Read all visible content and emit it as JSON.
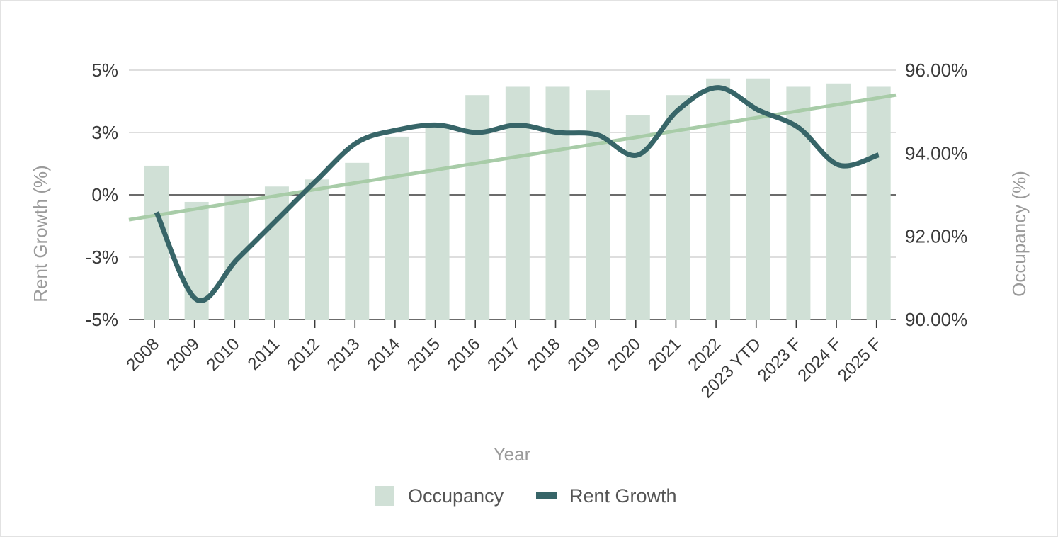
{
  "chart_data": {
    "type": "bar+line",
    "categories": [
      "2008",
      "2009",
      "2010",
      "2011",
      "2012",
      "2013",
      "2014",
      "2015",
      "2016",
      "2017",
      "2018",
      "2019",
      "2020",
      "2021",
      "2022",
      "2023 YTD",
      "2023 F",
      "2024 F",
      "2025 F"
    ],
    "series": [
      {
        "name": "Occupancy",
        "type": "bar",
        "axis": "right",
        "color": "#d0e0d6",
        "values": [
          93.7,
          92.83,
          92.97,
          93.2,
          93.37,
          93.77,
          94.4,
          94.7,
          95.4,
          95.6,
          95.6,
          95.52,
          94.92,
          95.4,
          95.8,
          95.8,
          95.6,
          95.68,
          95.6
        ]
      },
      {
        "name": "Rent Growth",
        "type": "line",
        "axis": "left",
        "color": "#376568",
        "values": [
          -0.7,
          -4.2,
          -2.6,
          -1.0,
          0.6,
          2.1,
          2.6,
          2.8,
          2.5,
          2.8,
          2.5,
          2.4,
          1.6,
          3.4,
          4.3,
          3.4,
          2.7,
          1.2,
          1.6
        ]
      },
      {
        "name": "Trend",
        "type": "trendline",
        "axis": "left",
        "color": "#a8cca8",
        "start": -1.0,
        "end": 4.0
      }
    ],
    "left_axis": {
      "title": "Rent Growth (%)",
      "ticks": [
        "5%",
        "3%",
        "0%",
        "-3%",
        "-5%"
      ],
      "tick_values": [
        5,
        2.5,
        0,
        -2.5,
        -5
      ],
      "range": [
        -5,
        5
      ]
    },
    "right_axis": {
      "title": "Occupancy (%)",
      "ticks": [
        "96.00%",
        "94.00%",
        "92.00%",
        "90.00%"
      ],
      "tick_values": [
        96,
        94,
        92,
        90
      ],
      "range": [
        90,
        96
      ]
    },
    "xlabel": "Year",
    "legend": {
      "position": "bottom",
      "items": [
        {
          "label": "Occupancy",
          "swatch": "box",
          "color": "#d0e0d6"
        },
        {
          "label": "Rent Growth",
          "swatch": "line",
          "color": "#376568"
        }
      ]
    }
  }
}
